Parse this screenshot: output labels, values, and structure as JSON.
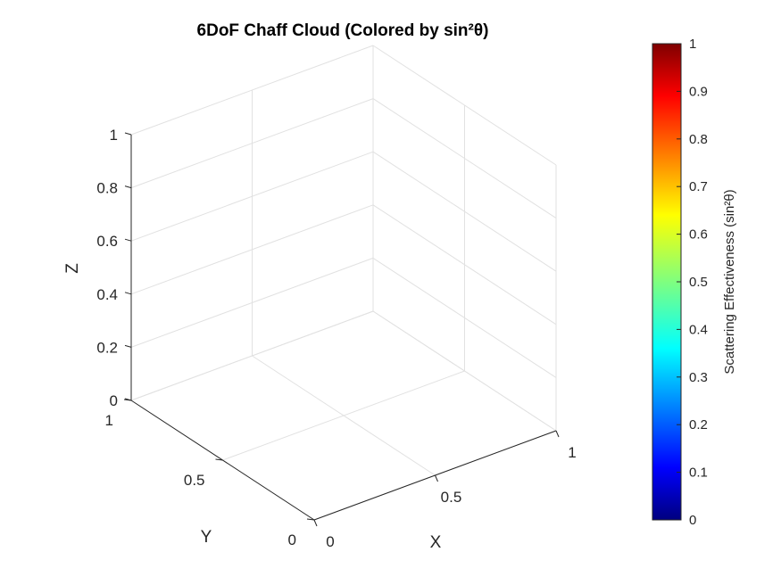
{
  "chart_data": {
    "type": "scatter",
    "title": "6DoF Chaff Cloud (Colored by sin²θ)",
    "xlabel": "X",
    "ylabel": "Y",
    "zlabel": "Z",
    "xlim": [
      0,
      1
    ],
    "ylim": [
      0,
      1
    ],
    "zlim": [
      0,
      1
    ],
    "x_ticks": [
      "0",
      "0.5",
      "1"
    ],
    "y_ticks": [
      "0",
      "0.5",
      "1"
    ],
    "z_ticks": [
      "0",
      "0.2",
      "0.4",
      "0.6",
      "0.8",
      "1"
    ],
    "grid": true,
    "points": [],
    "colorbar": {
      "label": "Scattering Effectiveness (sin²θ)",
      "colormap": "jet",
      "range": [
        0,
        1
      ],
      "ticks": [
        "0",
        "0.1",
        "0.2",
        "0.3",
        "0.4",
        "0.5",
        "0.6",
        "0.7",
        "0.8",
        "0.9",
        "1"
      ]
    }
  }
}
